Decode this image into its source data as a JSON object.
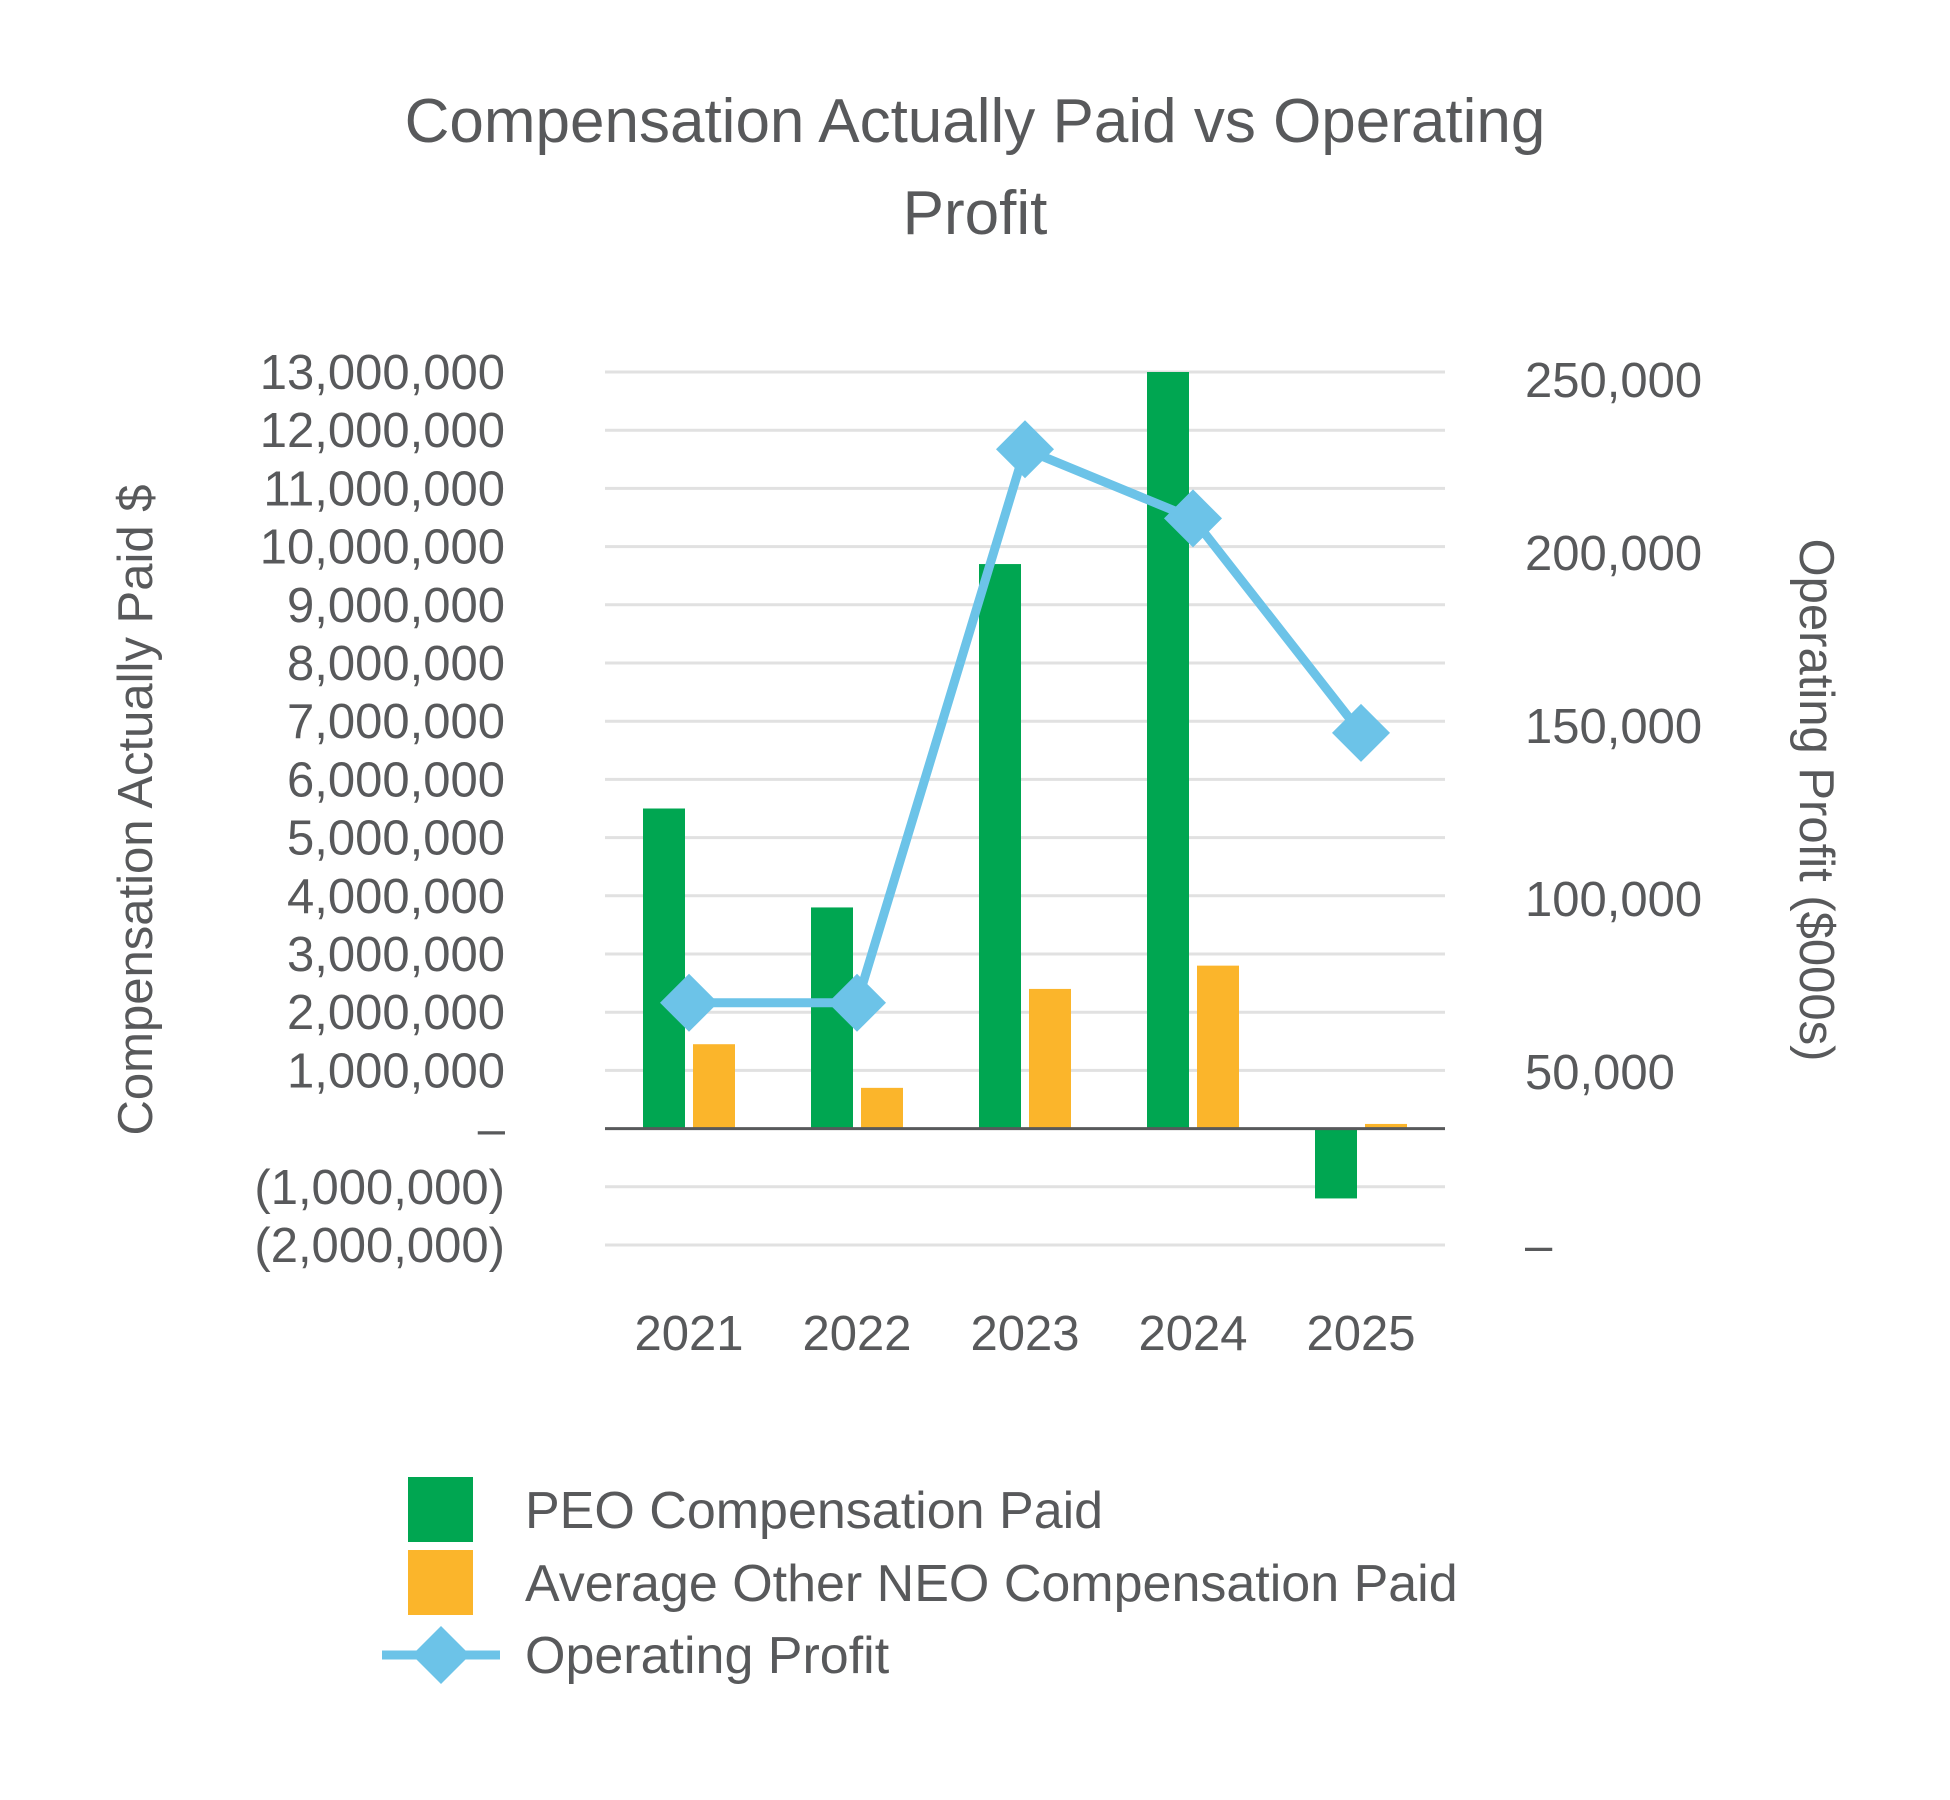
{
  "chart_data": {
    "type": "bar",
    "title_lines": [
      "Compensation Actually Paid vs Operating",
      "Profit"
    ],
    "categories": [
      "2021",
      "2022",
      "2023",
      "2024",
      "2025"
    ],
    "series": [
      {
        "name": "PEO Compensation Paid",
        "type": "bar",
        "axis": "left",
        "color": "#00a651",
        "values": [
          5500000,
          3800000,
          9700000,
          13000000,
          -1200000
        ]
      },
      {
        "name": "Average Other NEO Compensation Paid",
        "type": "bar",
        "axis": "left",
        "color": "#fbb52b",
        "values": [
          1450000,
          700000,
          2400000,
          2800000,
          80000
        ]
      },
      {
        "name": "Operating Profit",
        "type": "line",
        "axis": "right",
        "color": "#6cc3e8",
        "marker": "diamond",
        "values": [
          70000,
          70000,
          230000,
          210000,
          148000
        ]
      }
    ],
    "y_left": {
      "label": "Compensation Actually Paid $",
      "ylim": [
        -2000000,
        13000000
      ],
      "ticks": [
        13000000,
        12000000,
        11000000,
        10000000,
        9000000,
        8000000,
        7000000,
        6000000,
        5000000,
        4000000,
        3000000,
        2000000,
        1000000,
        0,
        -1000000,
        -2000000
      ],
      "tick_labels": [
        "13,000,000",
        "12,000,000",
        "11,000,000",
        "10,000,000",
        "9,000,000",
        "8,000,000",
        "7,000,000",
        "6,000,000",
        "5,000,000",
        "4,000,000",
        "3,000,000",
        "2,000,000",
        "1,000,000",
        "–",
        "(1,000,000)",
        "(2,000,000)"
      ]
    },
    "y_right": {
      "label": "Operating Profit ($000s)",
      "ylim": [
        0,
        250000
      ],
      "ticks": [
        250000,
        200000,
        150000,
        100000,
        50000,
        0
      ],
      "tick_labels": [
        "250,000",
        "200,000",
        "150,000",
        "100,000",
        "50,000",
        "–"
      ]
    },
    "grid": true,
    "legend_position": "bottom"
  }
}
